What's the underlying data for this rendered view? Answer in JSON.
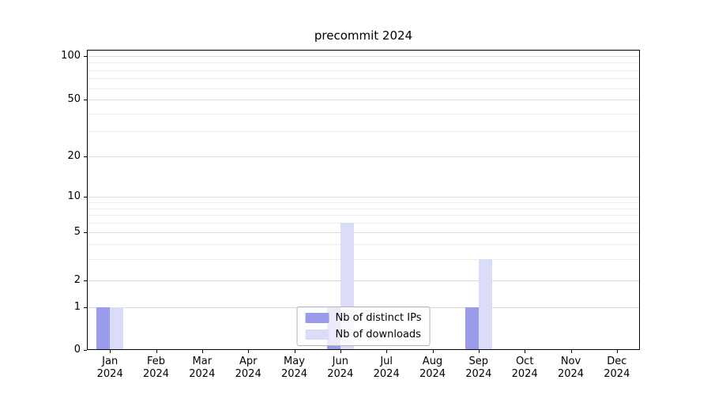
{
  "chart_data": {
    "type": "bar",
    "title": "precommit 2024",
    "categories": [
      "Jan",
      "Feb",
      "Mar",
      "Apr",
      "May",
      "Jun",
      "Jul",
      "Aug",
      "Sep",
      "Oct",
      "Nov",
      "Dec"
    ],
    "x_tick_year": "2024",
    "series": [
      {
        "name": "Nb of distinct IPs",
        "color": "#9a9ceb",
        "values": [
          1,
          0,
          0,
          0,
          0,
          1,
          0,
          0,
          1,
          0,
          0,
          0
        ]
      },
      {
        "name": "Nb of downloads",
        "color": "#dadcf8",
        "values": [
          1,
          0,
          0,
          0,
          0,
          6,
          0,
          0,
          3,
          0,
          0,
          0
        ]
      }
    ],
    "yscale": "symlog",
    "ytick_values": [
      0,
      1,
      2,
      5,
      10,
      20,
      50,
      100
    ],
    "ylim": [
      0,
      110
    ],
    "grid": "horizontal major and log-minor gridlines",
    "legend_position": "lower center"
  }
}
